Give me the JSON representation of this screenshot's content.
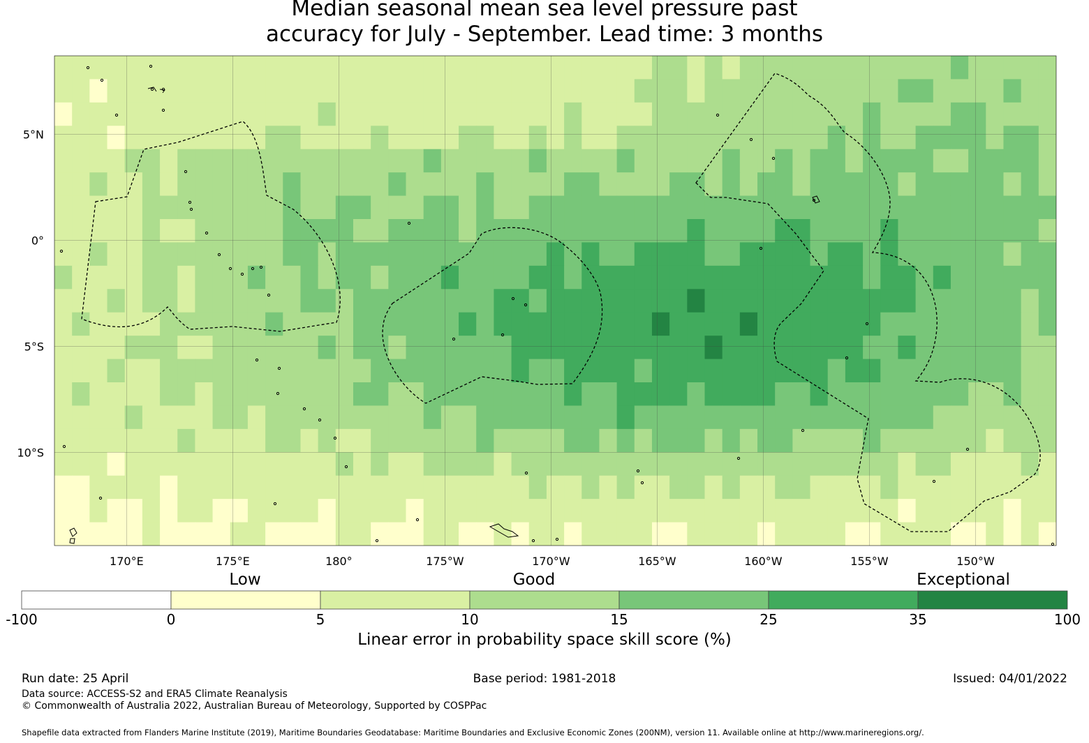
{
  "title": {
    "line1": "Median seasonal mean sea level pressure past",
    "line2": "accuracy for July - September. Lead time: 3 months"
  },
  "map": {
    "lon_range": [
      166.6,
      213.8
    ],
    "lat_range": [
      -14.4,
      8.7
    ],
    "lon_ticks": [
      {
        "lon": 170,
        "label": "170°E"
      },
      {
        "lon": 175,
        "label": "175°E"
      },
      {
        "lon": 180,
        "label": "180°"
      },
      {
        "lon": 185,
        "label": "175°W"
      },
      {
        "lon": 190,
        "label": "170°W"
      },
      {
        "lon": 195,
        "label": "165°W"
      },
      {
        "lon": 200,
        "label": "160°W"
      },
      {
        "lon": 205,
        "label": "155°W"
      },
      {
        "lon": 210,
        "label": "150°W"
      }
    ],
    "lat_ticks": [
      {
        "lat": 5,
        "label": "5°N"
      },
      {
        "lat": 0,
        "label": "0°"
      },
      {
        "lat": -5,
        "label": "5°S"
      },
      {
        "lat": -10,
        "label": "10°S"
      }
    ],
    "colors": {
      "c1": "#ffffcc",
      "c2": "#d9f0a3",
      "c3": "#addd8e",
      "c4": "#78c679",
      "c5": "#41ab5d",
      "c6": "#238443"
    }
  },
  "categories": {
    "low": "Low",
    "good": "Good",
    "exceptional": "Exceptional"
  },
  "colorbar": {
    "ticks": [
      "-100",
      "0",
      "5",
      "10",
      "15",
      "25",
      "35",
      "100"
    ],
    "colors": [
      "#ffffff",
      "#ffffcc",
      "#d9f0a3",
      "#addd8e",
      "#78c679",
      "#41ab5d",
      "#238443"
    ],
    "label": "Linear error in probability space skill score (%)"
  },
  "footer": {
    "run_date": "Run date: 25 April",
    "base_period": "Base period: 1981-2018",
    "issued": "Issued: 04/01/2022",
    "data_source": "Data source: ACCESS-S2 and ERA5 Climate Reanalysis",
    "copyright": "© Commonwealth of Australia 2022, Australian Bureau of Meteorology, Supported by COSPPac",
    "shapefile": "Shapefile data extracted from Flanders Marine Institute (2019), Maritime Boundaries Geodatabase: Maritime Boundaries and Exclusive Economic Zones (200NM), version 11. Available online at http://www.marineregions.org/."
  }
}
